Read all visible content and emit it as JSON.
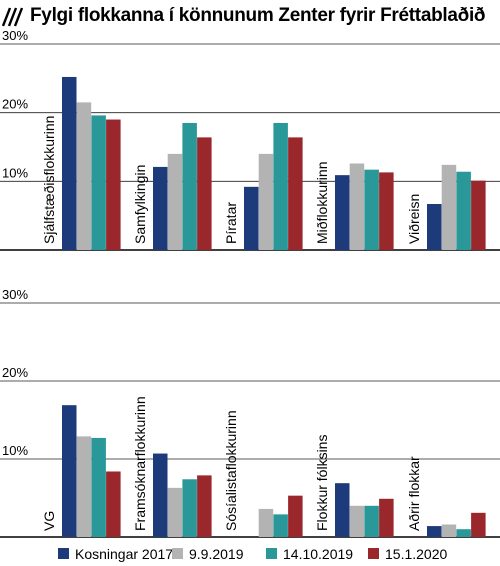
{
  "title": "Fylgi flokkanna í könnunum Zenter fyrir Fréttablaðið",
  "chart_data": [
    {
      "type": "bar",
      "categories": [
        "Sjálfstæðisflokkurinn",
        "Samfylkingin",
        "Píratar",
        "Miðflokkurinn",
        "Viðreisn"
      ],
      "ylim": [
        0,
        30
      ],
      "yticks": [
        "10%",
        "20%",
        "30%"
      ],
      "yticks_values": [
        10,
        20,
        30
      ],
      "series": [
        {
          "name": "Kosningar 2017",
          "values": [
            25.2,
            12.1,
            9.2,
            10.9,
            6.7
          ]
        },
        {
          "name": "9.9.2019",
          "values": [
            21.5,
            14.0,
            14.0,
            12.6,
            12.4
          ]
        },
        {
          "name": "14.10.2019",
          "values": [
            19.6,
            18.5,
            18.5,
            11.7,
            11.4
          ]
        },
        {
          "name": "15.1.2020",
          "values": [
            19.0,
            16.4,
            16.4,
            11.3,
            10.1
          ]
        }
      ]
    },
    {
      "type": "bar",
      "categories": [
        "VG",
        "Framsóknarflokkurinn",
        "Sósíalistaflokkurinn",
        "Flokkur fólksins",
        "Aðrir flokkar"
      ],
      "ylim": [
        0,
        30
      ],
      "yticks": [
        "10%",
        "20%",
        "30%"
      ],
      "yticks_values": [
        10,
        20,
        30
      ],
      "series": [
        {
          "name": "Kosningar 2017",
          "values": [
            16.9,
            10.7,
            0,
            6.9,
            1.4
          ]
        },
        {
          "name": "9.9.2019",
          "values": [
            12.9,
            6.3,
            3.6,
            4.0,
            1.6
          ]
        },
        {
          "name": "14.10.2019",
          "values": [
            12.7,
            7.4,
            2.9,
            4.0,
            1.0
          ]
        },
        {
          "name": "15.1.2020",
          "values": [
            8.4,
            7.9,
            5.3,
            4.9,
            3.1
          ]
        }
      ]
    }
  ],
  "legend": [
    {
      "label": "Kosningar 2017",
      "color": "#1d3a7a"
    },
    {
      "label": "9.9.2019",
      "color": "#b3b3b3"
    },
    {
      "label": "14.10.2019",
      "color": "#2a9799"
    },
    {
      "label": "15.1.2020",
      "color": "#9a272c"
    }
  ],
  "colors": [
    "#1d3a7a",
    "#b3b3b3",
    "#2a9799",
    "#9a272c"
  ]
}
